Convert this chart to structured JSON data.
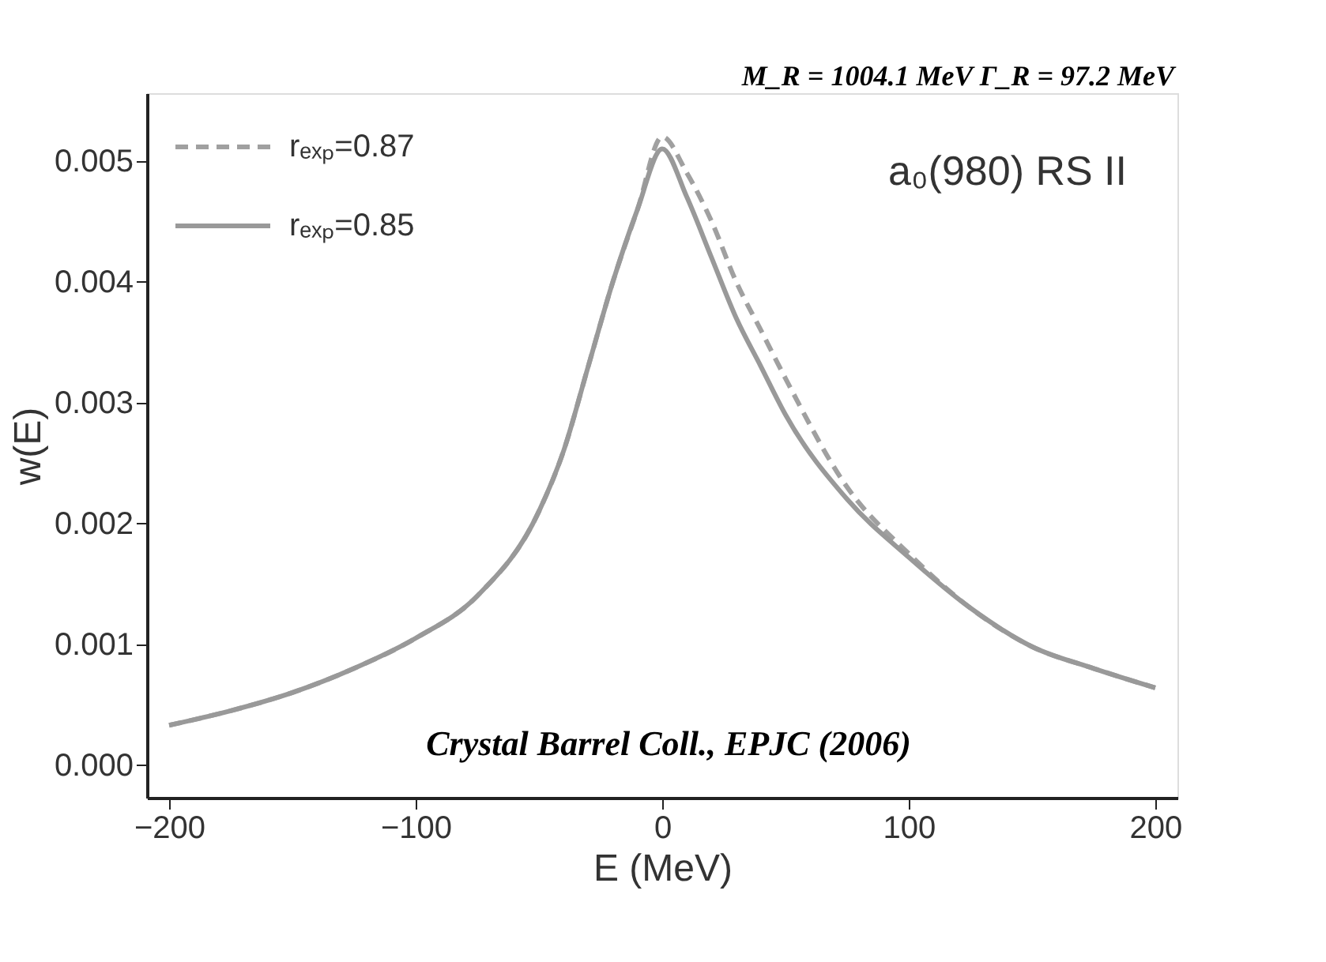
{
  "chart_data": {
    "type": "line",
    "xlabel": "E (MeV)",
    "ylabel": "w(E)",
    "x": [
      -200,
      -175,
      -150,
      -125,
      -100,
      -75,
      -50,
      -40,
      -30,
      -20,
      -10,
      0,
      10,
      20,
      30,
      40,
      50,
      75,
      100,
      125,
      150,
      175,
      200
    ],
    "series": [
      {
        "name": "rₑₓₚ=0.87",
        "color": "#a0a0a0",
        "line_style": "dashed",
        "values": [
          0.00033,
          0.00045,
          0.0006,
          0.0008,
          0.00105,
          0.0014,
          0.0021,
          0.0026,
          0.0033,
          0.004,
          0.0046,
          0.0052,
          0.0049,
          0.0045,
          0.004,
          0.0036,
          0.0032,
          0.0023,
          0.00175,
          0.0013,
          0.00098,
          0.0008,
          0.00064
        ]
      },
      {
        "name": "rₑₓₚ=0.85",
        "color": "#999999",
        "line_style": "solid",
        "values": [
          0.00033,
          0.00045,
          0.0006,
          0.0008,
          0.00105,
          0.0014,
          0.0021,
          0.0026,
          0.0033,
          0.004,
          0.0046,
          0.0051,
          0.0047,
          0.0042,
          0.0037,
          0.0033,
          0.0029,
          0.0022,
          0.00172,
          0.0013,
          0.00098,
          0.0008,
          0.00064
        ]
      }
    ],
    "xlim": [
      -209,
      209
    ],
    "ylim": [
      -0.00027,
      0.00556
    ],
    "xticks": [
      {
        "value": -200,
        "label": "−200"
      },
      {
        "value": -100,
        "label": "−100"
      },
      0,
      100,
      200
    ],
    "yticks": [
      {
        "value": 0,
        "label": "0.000"
      },
      {
        "value": 0.001,
        "label": "0.001"
      },
      {
        "value": 0.002,
        "label": "0.002"
      },
      {
        "value": 0.003,
        "label": "0.003"
      },
      {
        "value": 0.004,
        "label": "0.004"
      },
      {
        "value": 0.005,
        "label": "0.005"
      }
    ],
    "annotations": [
      "a₀(980) RS II",
      "Crystal Barrel Coll., EPJC (2006)",
      "M_R = 1004.1 MeV  Γ_R = 97.2 MeV"
    ],
    "legend": "top left",
    "grid": false
  }
}
